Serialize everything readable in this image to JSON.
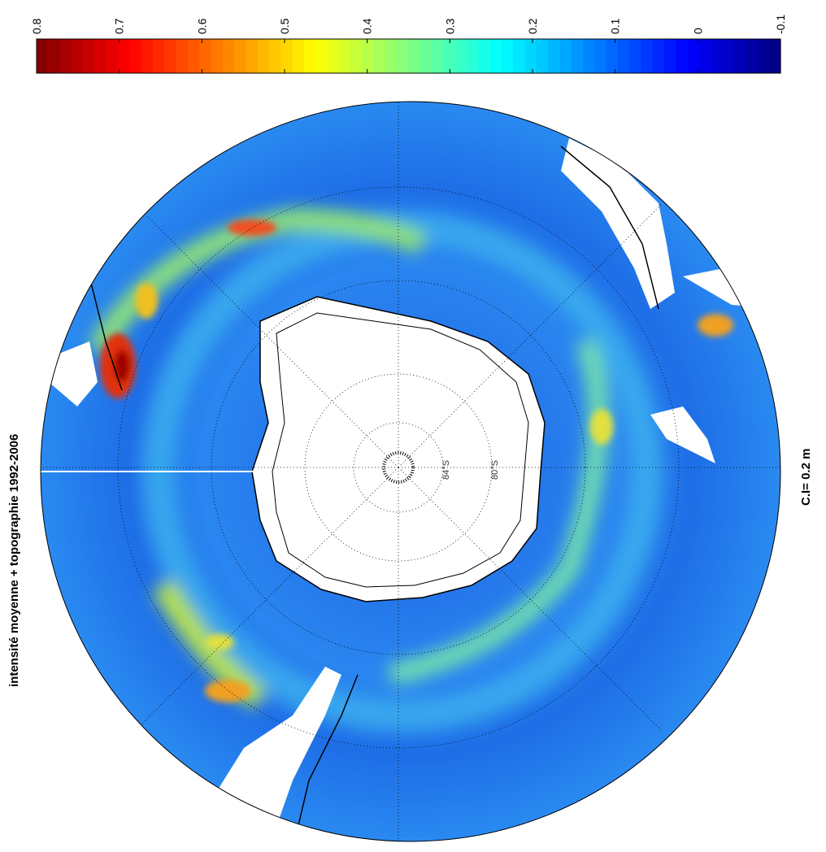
{
  "map": {
    "title": "intensité moyenne + topographie 1992-2006",
    "contour_interval": "C.I= 0.2 m",
    "latitude_labels": [
      "84°S",
      "80°S"
    ],
    "colorbar": {
      "range": [
        -0.1,
        0.8
      ],
      "ticks": [
        0.8,
        0.7,
        0.6,
        0.5,
        0.4,
        0.3,
        0.2,
        0.1,
        0,
        -0.1
      ]
    }
  }
}
